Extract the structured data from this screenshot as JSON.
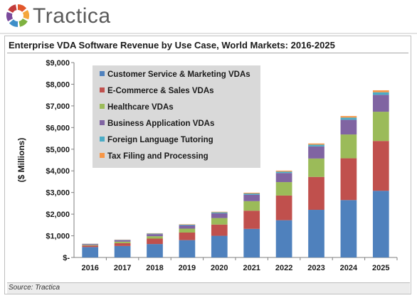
{
  "header": {
    "brand": "Tractica",
    "logo_colors": [
      "#e2572b",
      "#f4a63a",
      "#7fb241",
      "#3e8fc9",
      "#7a4a9c",
      "#c23b3b"
    ]
  },
  "footer": {
    "source": "Source: Tractica"
  },
  "chart_data": {
    "type": "bar",
    "stacked": true,
    "title": "Enterprise VDA Software Revenue by Use Case, World Markets: 2016-2025",
    "xlabel": "",
    "ylabel": "($ Millions)",
    "ylim": [
      0,
      9000
    ],
    "yticks": [
      0,
      1000,
      2000,
      3000,
      4000,
      5000,
      6000,
      7000,
      8000,
      9000
    ],
    "ytick_labels": [
      "$-",
      "$1,000",
      "$2,000",
      "$3,000",
      "$4,000",
      "$5,000",
      "$6,000",
      "$7,000",
      "$8,000",
      "$9,000"
    ],
    "grid": false,
    "legend_position": "top-left",
    "categories": [
      "2016",
      "2017",
      "2018",
      "2019",
      "2020",
      "2021",
      "2022",
      "2023",
      "2024",
      "2025"
    ],
    "series": [
      {
        "name": "Customer Service & Marketing VDAs",
        "color": "#4f81bd",
        "values": [
          480,
          530,
          620,
          800,
          1000,
          1320,
          1720,
          2200,
          2650,
          3080
        ]
      },
      {
        "name": "E-Commerce & Sales VDAs",
        "color": "#c0504d",
        "values": [
          70,
          130,
          250,
          350,
          520,
          840,
          1140,
          1520,
          1930,
          2300
        ]
      },
      {
        "name": "Healthcare VDAs",
        "color": "#9bbb59",
        "values": [
          30,
          70,
          110,
          180,
          300,
          440,
          620,
          850,
          1100,
          1350
        ]
      },
      {
        "name": "Business Application VDAs",
        "color": "#8064a2",
        "values": [
          40,
          70,
          100,
          150,
          220,
          300,
          420,
          560,
          680,
          780
        ]
      },
      {
        "name": "Foreign Language Tutoring",
        "color": "#4bacc6",
        "values": [
          10,
          15,
          25,
          35,
          45,
          55,
          65,
          80,
          100,
          120
        ]
      },
      {
        "name": "Tax Filing and Processing",
        "color": "#f79646",
        "values": [
          5,
          10,
          15,
          20,
          25,
          35,
          45,
          55,
          70,
          90
        ]
      }
    ]
  }
}
